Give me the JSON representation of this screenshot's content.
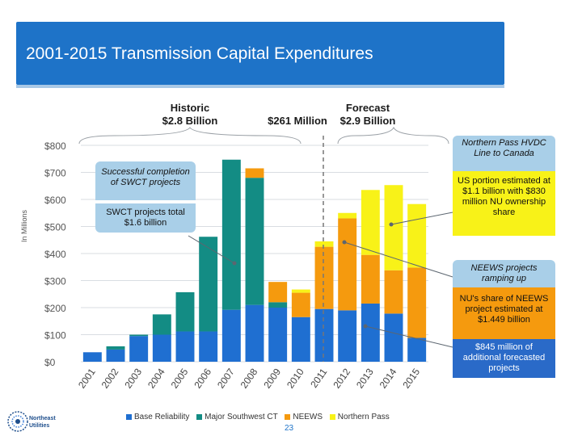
{
  "title": "2001-2015 Transmission Capital Expenditures",
  "headers": {
    "historic_line1": "Historic",
    "historic_line2": "$2.8 Billion",
    "middle": "$261 Million",
    "forecast_line1": "Forecast",
    "forecast_line2": "$2.9 Billion"
  },
  "callouts": {
    "successful": "Successful completion of SWCT projects",
    "swct_total": "SWCT projects total $1.6 billion",
    "northern_pass": "Northern Pass HVDC Line to Canada",
    "us_portion": "US portion estimated at $1.1 billion with $830 million NU ownership share",
    "neews_ramp": "NEEWS projects ramping up",
    "nu_share": "NU's share of NEEWS project estimated at $1.449 billion",
    "additional": "$845 million of additional forecasted projects"
  },
  "colors": {
    "title_bar": "#1e73c8",
    "base_reliability": "#1f6fd1",
    "major_swct": "#138c84",
    "neews": "#f59a0e",
    "northern_pass": "#f8f218",
    "callout_blue": "#a9cfe8",
    "callout_orange": "#f59a0e",
    "callout_dark_blue": "#2a6ac8"
  },
  "chart_data": {
    "type": "bar",
    "stacked": true,
    "categories": [
      "2001",
      "2002",
      "2003",
      "2004",
      "2005",
      "2006",
      "2007",
      "2008",
      "2009",
      "2010",
      "2011",
      "2012",
      "2013",
      "2014",
      "2015"
    ],
    "ylabel": "In Millions",
    "ylim": [
      0,
      800
    ],
    "yticks": [
      "$0",
      "$100",
      "$200",
      "$300",
      "$400",
      "$500",
      "$600",
      "$700",
      "$800"
    ],
    "series": [
      {
        "name": "Base Reliability",
        "values": [
          35,
          45,
          95,
          100,
          112,
          112,
          192,
          210,
          200,
          165,
          195,
          190,
          215,
          178,
          88
        ]
      },
      {
        "name": "Major Southwest CT",
        "values": [
          0,
          12,
          5,
          75,
          145,
          350,
          555,
          470,
          20,
          0,
          0,
          0,
          0,
          0,
          0
        ]
      },
      {
        "name": "NEEWS",
        "values": [
          0,
          0,
          0,
          0,
          0,
          0,
          0,
          35,
          75,
          90,
          230,
          340,
          180,
          160,
          260
        ]
      },
      {
        "name": "Northern Pass",
        "values": [
          0,
          0,
          0,
          0,
          0,
          0,
          0,
          0,
          0,
          12,
          20,
          20,
          240,
          315,
          235
        ]
      }
    ]
  },
  "footer": {
    "legend": [
      "Base Reliability",
      "Major Southwest CT",
      "NEEWS",
      "Northern Pass"
    ],
    "page_number": "23",
    "logo_line1": "Northeast",
    "logo_line2": "Utilities"
  }
}
